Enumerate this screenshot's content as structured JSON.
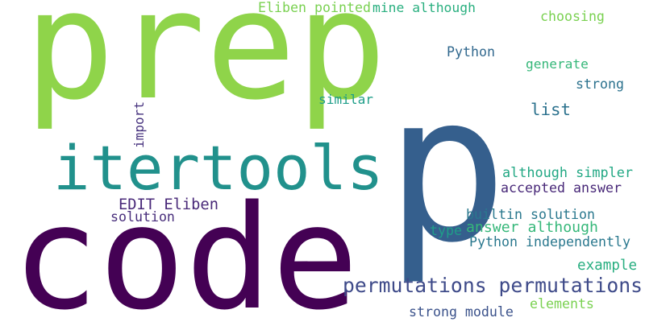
{
  "palette": {
    "light_green": "#8fd44a",
    "mid_green": "#5ec962",
    "teal": "#21918c",
    "blue": "#355f8d",
    "deep_purple": "#440154",
    "slate": "#3b528b",
    "sea_green": "#29af7f"
  },
  "words": [
    {
      "text": "prep",
      "color": "#8fd44a"
    },
    {
      "text": "p",
      "color": "#355f8d"
    },
    {
      "text": "code",
      "color": "#440154"
    },
    {
      "text": "itertools",
      "color": "#21918c"
    },
    {
      "text": "permutations permutations",
      "color": "#3e4a89"
    },
    {
      "text": "Eliben pointed",
      "color": "#7ad151"
    },
    {
      "text": "mine although",
      "color": "#29af7f"
    },
    {
      "text": "choosing",
      "color": "#7ad151"
    },
    {
      "text": "Python",
      "color": "#31688e"
    },
    {
      "text": "generate",
      "color": "#35b779"
    },
    {
      "text": "strong",
      "color": "#2c728e"
    },
    {
      "text": "similar",
      "color": "#1f9e89"
    },
    {
      "text": "list",
      "color": "#2c728e"
    },
    {
      "text": "import",
      "color": "#46327e"
    },
    {
      "text": "although simpler",
      "color": "#22a884"
    },
    {
      "text": "accepted answer",
      "color": "#482878"
    },
    {
      "text": "EDIT Eliben",
      "color": "#482878"
    },
    {
      "text": "solution",
      "color": "#472d7b"
    },
    {
      "text": "builtin solution",
      "color": "#2a788e"
    },
    {
      "text": "type",
      "color": "#1f9e89"
    },
    {
      "text": "answer although",
      "color": "#35b779"
    },
    {
      "text": "Python independently",
      "color": "#2a788e"
    },
    {
      "text": "example",
      "color": "#28ae80"
    },
    {
      "text": "elements",
      "color": "#7ad151"
    },
    {
      "text": "strong module",
      "color": "#3b528b"
    }
  ]
}
